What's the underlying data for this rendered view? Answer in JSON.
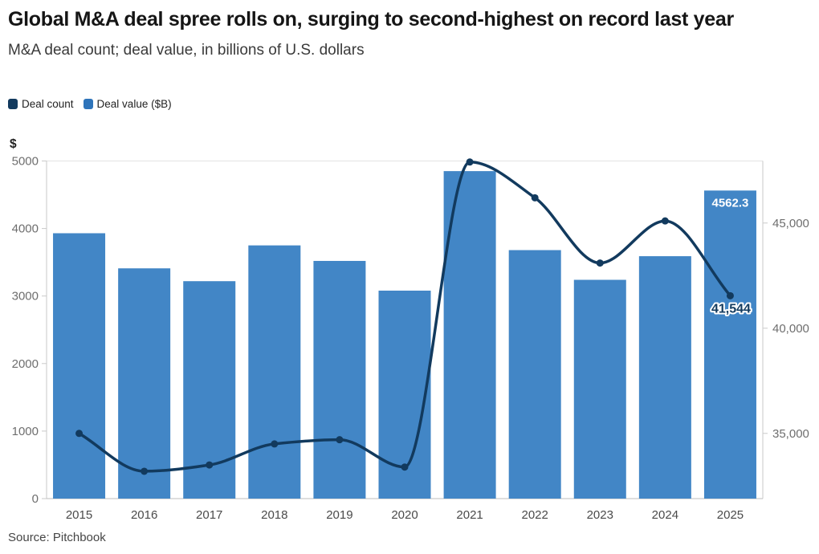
{
  "header": {
    "title": "Global M&A deal spree rolls on, surging to second-highest on record last year",
    "subtitle": "M&A deal count; deal value, in billions of U.S. dollars"
  },
  "legend": [
    {
      "label": "Deal count",
      "color": "#123a5e"
    },
    {
      "label": "Deal value ($B)",
      "color": "#2e74ba"
    }
  ],
  "source": "Source: Pitchbook",
  "colors": {
    "bar": "#4286c6",
    "line": "#123a5e",
    "axis": "#c9c9c9",
    "gridline": "#e3e3e3",
    "tick_label": "#6e6e6e",
    "year_label": "#4a4a4a",
    "bar_value_label": "#ffffff",
    "line_value_label": "#123a5e"
  },
  "chart_data": {
    "type": "bar+line combo",
    "categories": [
      "2015",
      "2016",
      "2017",
      "2018",
      "2019",
      "2020",
      "2021",
      "2022",
      "2023",
      "2024",
      "2025"
    ],
    "series": [
      {
        "name": "Deal value ($B)",
        "type": "bar",
        "axis": "left",
        "values": [
          3930,
          3410,
          3220,
          3750,
          3520,
          3080,
          4850,
          3680,
          3240,
          3590,
          4562.3
        ]
      },
      {
        "name": "Deal count",
        "type": "line",
        "axis": "right",
        "values": [
          35000,
          33200,
          33500,
          34500,
          34700,
          33400,
          47900,
          46200,
          43100,
          45100,
          41544
        ]
      }
    ],
    "left_axis": {
      "title": "$",
      "tick_values": [
        0,
        1000,
        2000,
        3000,
        4000,
        5000
      ],
      "tick_labels": [
        "0",
        "1000",
        "2000",
        "3000",
        "4000",
        "5000"
      ],
      "range": [
        0,
        5000
      ],
      "gridline_at": 5000
    },
    "right_axis": {
      "tick_values": [
        35000,
        40000,
        45000
      ],
      "tick_labels": [
        "35,000",
        "40,000",
        "45,000"
      ],
      "range": [
        31900,
        47950
      ]
    },
    "annotations": [
      {
        "series": "Deal value ($B)",
        "category": "2025",
        "index": 10,
        "text": "4562.3"
      },
      {
        "series": "Deal count",
        "category": "2025",
        "index": 10,
        "text": "41,544"
      }
    ],
    "legend_position": "top-left",
    "grid": "top gridline only"
  }
}
